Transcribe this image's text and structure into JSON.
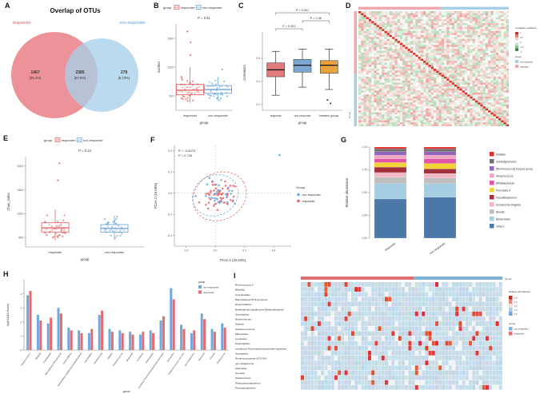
{
  "colors": {
    "responder": "#E8696B",
    "non_responder": "#6FA8DC",
    "between_groups": "#E8A33D",
    "heat_red": "#D93025"
  },
  "chart_data": [
    {
      "panel": "A",
      "type": "venn",
      "title": "Overlap of OTUs",
      "sets": [
        {
          "label": "responder",
          "count": "1467",
          "pct": "(35.4%)",
          "color": "#ED8C93"
        },
        {
          "label": "non-responder",
          "count": "278",
          "pct": "(6.73%)",
          "color": "#A9CFE8"
        }
      ],
      "overlap": {
        "count": "2385",
        "pct": "(57.8%)"
      }
    },
    {
      "panel": "B",
      "type": "box-jitter",
      "legend_title": "group",
      "p_text": "P = 0.61",
      "ylabel": "number",
      "xlabel": "group",
      "ylim": [
        250,
        1750
      ],
      "yticks": [
        500,
        1000,
        1500
      ],
      "groups": [
        {
          "label": "responder",
          "color": "#E8696B",
          "n": 46,
          "median": 600,
          "q1": 520,
          "q3": 700,
          "whisker_low": 380,
          "whisker_high": 1000,
          "outliers": [
            1210,
            1430,
            1620
          ]
        },
        {
          "label": "non-responder",
          "color": "#6FA8DC",
          "n": 40,
          "median": 610,
          "q1": 545,
          "q3": 680,
          "whisker_low": 420,
          "whisker_high": 830,
          "outliers": [
            960
          ]
        }
      ]
    },
    {
      "panel": "C",
      "type": "box",
      "ylabel": "correlation",
      "xlabel": "group",
      "ylim": [
        0.15,
        0.8
      ],
      "yticks": [
        0.2,
        0.4,
        0.6
      ],
      "groups": [
        {
          "label": "response",
          "color": "#E07B7B",
          "median": 0.5,
          "q1": 0.44,
          "q3": 0.56,
          "whisker_low": 0.28,
          "whisker_high": 0.66,
          "outliers": []
        },
        {
          "label": "non-response",
          "color": "#7BA7D0",
          "median": 0.54,
          "q1": 0.48,
          "q3": 0.59,
          "whisker_low": 0.35,
          "whisker_high": 0.68,
          "outliers": []
        },
        {
          "label": "between groups",
          "color": "#E8A33D",
          "median": 0.54,
          "q1": 0.47,
          "q3": 0.58,
          "whisker_low": 0.33,
          "whisker_high": 0.68,
          "outliers": [
            0.24,
            0.21
          ]
        }
      ],
      "comparisons": [
        {
          "a": 0,
          "b": 2,
          "label": "P < 0.001",
          "y": 14
        },
        {
          "a": 1,
          "b": 2,
          "label": "P = 0.38",
          "y": 24
        },
        {
          "a": 0,
          "b": 1,
          "label": "P = 0.001",
          "y": 34
        }
      ]
    },
    {
      "panel": "D",
      "type": "corr-heatmap",
      "n": 58,
      "group_split": 0.55,
      "legend_title": "correlation coefficient",
      "colorbar_labels": [
        "1",
        "0.5",
        "0",
        "-0.5",
        "-1"
      ],
      "group_legend_title": "Group",
      "axis_label": "Group",
      "groups": [
        {
          "label": "non-response",
          "color": "#A9CFE8"
        },
        {
          "label": "response",
          "color": "#F2A8AE"
        }
      ]
    },
    {
      "panel": "E",
      "type": "box-jitter",
      "legend_title": "group",
      "p_text": "P = 0.13",
      "ylabel": "Chao_index",
      "xlabel": "group",
      "ylim": [
        300,
        2200
      ],
      "yticks": [
        500,
        1000,
        1500,
        2000
      ],
      "groups": [
        {
          "label": "responder",
          "color": "#E8696B",
          "n": 46,
          "median": 700,
          "q1": 615,
          "q3": 810,
          "whisker_low": 440,
          "whisker_high": 1090,
          "outliers": [
            1700,
            2060
          ]
        },
        {
          "label": "non-responder",
          "color": "#6FA8DC",
          "n": 40,
          "median": 690,
          "q1": 610,
          "q3": 770,
          "whisker_low": 440,
          "whisker_high": 960,
          "outliers": []
        }
      ]
    },
    {
      "panel": "F",
      "type": "pcoa-scatter",
      "r_text": "R = -0.0073",
      "p_text": "P = 0.734",
      "xlabel": "PCoA 1 (32.53%)",
      "ylabel": "PCoA 2 (15.68%)",
      "xlim": [
        -0.28,
        0.52
      ],
      "ylim": [
        -0.5,
        0.45
      ],
      "xticks": [
        -0.2,
        0,
        0.2,
        0.4
      ],
      "yticks": [
        -0.4,
        -0.2,
        0,
        0.2,
        0.4
      ],
      "legend_title": "Group",
      "groups": [
        {
          "label": "non-responder",
          "color": "#6FA8DC",
          "n": 40
        },
        {
          "label": "responder",
          "color": "#E8696B",
          "n": 46
        }
      ],
      "outlier": {
        "x": 0.44,
        "y": 0.36,
        "group": 0
      }
    },
    {
      "panel": "G",
      "type": "stacked-bar",
      "ylabel": "Relative abundance",
      "categories": [
        "responder",
        "non-responder"
      ],
      "ytick_labels": [
        "0.00",
        "0.25",
        "0.50",
        "0.75",
        "1.00"
      ],
      "ytick_values": [
        0,
        0.25,
        0.5,
        0.75,
        1
      ],
      "taxa": [
        {
          "label": "Dialister",
          "color": "#E03030",
          "values": [
            0.02,
            0.02
          ]
        },
        {
          "label": "Subdoligranulum",
          "color": "#6E6E6E",
          "values": [
            0.03,
            0.03
          ]
        },
        {
          "label": "[Ruminococcus] torques group",
          "color": "#9467BD",
          "values": [
            0.04,
            0.04
          ]
        },
        {
          "label": "Streptococcus",
          "color": "#F4A6C0",
          "values": [
            0.04,
            0.04
          ]
        },
        {
          "label": "Bifidobacterium",
          "color": "#E354A8",
          "values": [
            0.04,
            0.05
          ]
        },
        {
          "label": "Prevotella 9",
          "color": "#F2D335",
          "values": [
            0.05,
            0.06
          ]
        },
        {
          "label": "Faecalibacterium",
          "color": "#A0303A",
          "values": [
            0.06,
            0.05
          ]
        },
        {
          "label": "Escherichia-Shigella",
          "color": "#F2B8C6",
          "values": [
            0.05,
            0.05
          ]
        },
        {
          "label": "Blautia",
          "color": "#BFBFBF",
          "values": [
            0.07,
            0.06
          ]
        },
        {
          "label": "Bacteroides",
          "color": "#A6CEE3",
          "values": [
            0.17,
            0.15
          ]
        },
        {
          "label": "Others",
          "color": "#4C78A8",
          "values": [
            0.43,
            0.45
          ]
        }
      ]
    },
    {
      "panel": "H",
      "type": "grouped-bar",
      "ylabel": "log10(LDA Score)",
      "xlabel": "genus",
      "legend_title": "group",
      "ylim": [
        0,
        5
      ],
      "yticks": [
        0,
        1,
        2,
        3,
        4
      ],
      "categories": [
        "Ruminococcus 2",
        "Bilophila",
        "Coprobacillus",
        "Rikenellaceae RC9 gut group",
        "Enterorhabdus",
        "Burkholderia-Caballeronia-Paraburkholderia",
        "Succinivibrio",
        "Nesterenkonia",
        "Dialister",
        "Acidaminococcus",
        "Mitsuokella",
        "Lysobacter",
        "Peptoniphilus",
        "uncultured Thermoanaerobacterales bacterium",
        "Synergistes",
        "Ruminococcaceae UCG-016",
        "gut metagenome",
        "Selimonas",
        "Gemella",
        "Streptococcus"
      ],
      "series": [
        {
          "label": "non-responder",
          "color": "#6FA8DC",
          "values": [
            3.9,
            2.5,
            1.9,
            3.0,
            1.6,
            1.4,
            1.2,
            2.5,
            1.5,
            1.4,
            1.3,
            1.1,
            1.4,
            2.1,
            4.4,
            1.8,
            1.2,
            2.6,
            1.5,
            1.9
          ]
        },
        {
          "label": "responder",
          "color": "#E8696B",
          "values": [
            4.2,
            2.1,
            2.3,
            2.6,
            1.4,
            1.2,
            1.5,
            2.8,
            1.3,
            1.2,
            1.1,
            1.3,
            1.2,
            2.4,
            3.6,
            1.5,
            1.4,
            2.2,
            1.3,
            1.6
          ]
        }
      ]
    },
    {
      "panel": "I",
      "type": "abundance-heatmap",
      "cols": 60,
      "group_split": 0.56,
      "annotation_title": "Group",
      "rows": [
        "Ruminococcus 2",
        "Bilophila",
        "Coprobacillus",
        "Rikenellaceae RC9 gut group",
        "Enterorhabdus",
        "Burkholderia-Caballeronia-Paraburkholderia",
        "Succinivibrio",
        "Nesterenkonia",
        "Dialister",
        "Acidaminococcus",
        "Mitsuokella",
        "Lysobacter",
        "Peptoniphilus",
        "uncultured Thermoanaerobacterales bacterium",
        "Synergistes",
        "Ruminococcaceae UCG-016",
        "gut metagenome",
        "Selimonas",
        "Gemella",
        "Streptococcus",
        "Phascolarctobacterium",
        "Pseudobutyrivibrio"
      ],
      "legend_abundance_title": "Relative Abundance",
      "legend_abundance_labels": [
        "2.5",
        "2.0",
        "1.5",
        "1.0",
        "0.5"
      ],
      "legend_group_title": "Group",
      "legend_groups": [
        {
          "label": "non-responder",
          "color": "#7FB2D8"
        },
        {
          "label": "responder",
          "color": "#E07070"
        }
      ],
      "top_groups": [
        {
          "label": "responder",
          "color": "#E07070"
        },
        {
          "label": "non-responder",
          "color": "#7FB2D8"
        }
      ]
    }
  ]
}
